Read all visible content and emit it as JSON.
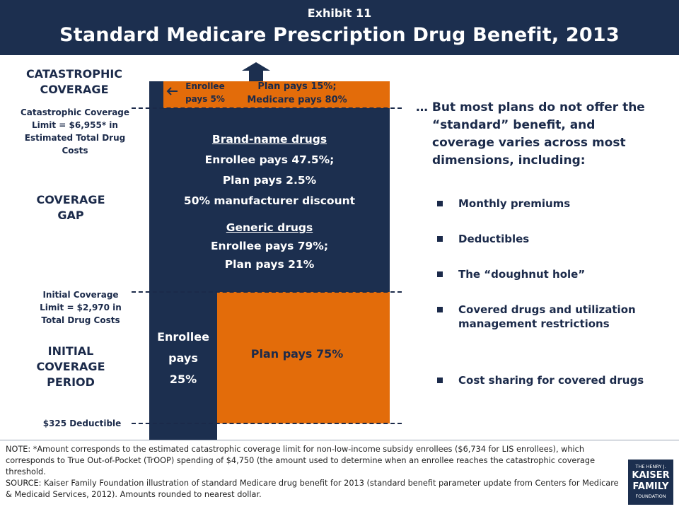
{
  "header": {
    "exhibit": "Exhibit 11",
    "title": "Standard Medicare Prescription Drug Benefit, 2013"
  },
  "left_labels": {
    "catastrophic_heading": "CATASTROPHIC COVERAGE",
    "catastrophic_limit": "Catastrophic Coverage Limit = $6,955* in Estimated Total Drug Costs",
    "gap_heading": "COVERAGE GAP",
    "initial_limit": "Initial Coverage Limit = $2,970 in Total Drug Costs",
    "initial_heading": "INITIAL COVERAGE PERIOD",
    "deductible": "$325 Deductible"
  },
  "catastrophic_block": {
    "enrollee": "Enrollee pays 5%",
    "plan": "Plan pays 15%; Medicare pays 80%"
  },
  "gap_block": {
    "brand_title": "Brand-name drugs",
    "brand_line1": "Enrollee pays 47.5%;",
    "brand_line2": "Plan pays 2.5%",
    "brand_line3": "50% manufacturer discount",
    "generic_title": "Generic drugs",
    "generic_line1": "Enrollee pays 79%;",
    "generic_line2": "Plan pays 21%"
  },
  "initial_block": {
    "enrollee_line1": "Enrollee",
    "enrollee_line2": "pays",
    "enrollee_line3": "25%",
    "plan": "Plan pays 75%"
  },
  "right_panel": {
    "intro": "… But most plans do not offer the “standard” benefit, and coverage varies across most dimensions, including:",
    "bullets": [
      "Monthly premiums",
      "Deductibles",
      "The “doughnut hole”",
      "Covered drugs and utilization management restrictions",
      "Cost sharing for covered drugs"
    ]
  },
  "footer": {
    "note": "NOTE: *Amount corresponds to the estimated catastrophic coverage limit for non-low-income subsidy enrollees ($6,734 for LIS enrollees), which corresponds to True Out-of-Pocket (TrOOP) spending of $4,750 (the amount used to determine when an enrollee reaches the catastrophic coverage threshold.",
    "source": "SOURCE:  Kaiser Family Foundation illustration of standard Medicare drug benefit for 2013 (standard benefit parameter update from Centers for Medicare & Medicaid Services, 2012).  Amounts rounded to nearest dollar.",
    "logo_top": "THE HENRY J.",
    "logo_mid1": "KAISER",
    "logo_mid2": "FAMILY",
    "logo_bottom": "FOUNDATION"
  },
  "colors": {
    "navy": "#1c2f4f",
    "orange": "#e36c0a"
  }
}
